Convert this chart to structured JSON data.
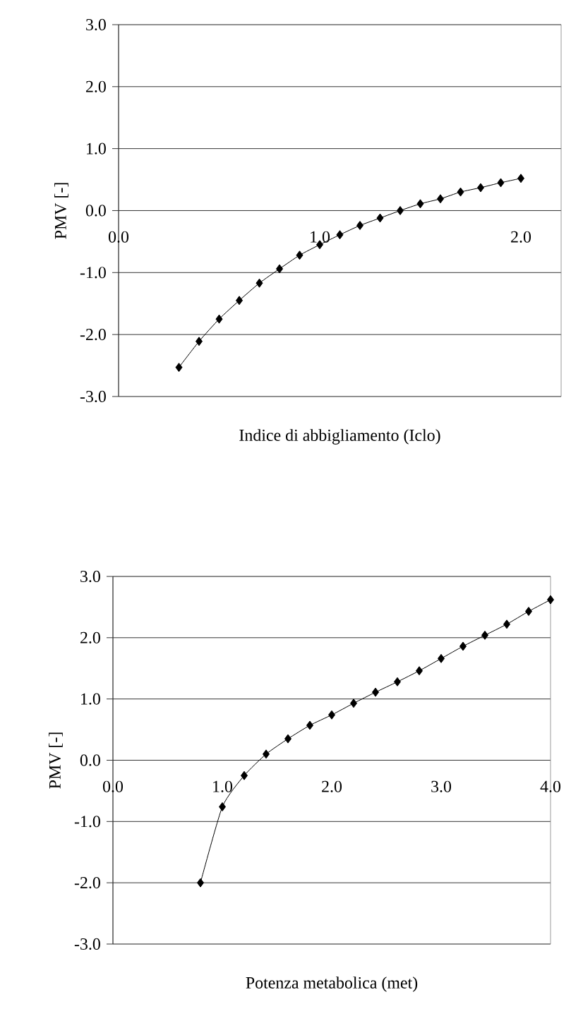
{
  "chart_data": [
    {
      "type": "line",
      "xlabel": "Indice di abbigliamento (Iclo)",
      "ylabel": "PMV [-]",
      "x": [
        0.3,
        0.4,
        0.5,
        0.6,
        0.7,
        0.8,
        0.9,
        1.0,
        1.1,
        1.2,
        1.3,
        1.4,
        1.5,
        1.6,
        1.7,
        1.8,
        1.9,
        2.0
      ],
      "values": [
        -2.53,
        -2.11,
        -1.75,
        -1.45,
        -1.17,
        -0.94,
        -0.72,
        -0.55,
        -0.39,
        -0.24,
        -0.12,
        0.0,
        0.11,
        0.19,
        0.3,
        0.37,
        0.45,
        0.52
      ],
      "color": "#000000",
      "marker": "diamond",
      "line_style": "solid",
      "grid": "y",
      "xlim": [
        0,
        2.2
      ],
      "ylim": [
        -3,
        3
      ],
      "xticks": [
        {
          "value": 0,
          "label": "0.0"
        },
        {
          "value": 1,
          "label": "1.0"
        },
        {
          "value": 2,
          "label": "2.0"
        }
      ],
      "yticks": [
        {
          "value": -3,
          "label": "-3.0"
        },
        {
          "value": -2,
          "label": "-2.0"
        },
        {
          "value": -1,
          "label": "-1.0"
        },
        {
          "value": 0,
          "label": "0.0"
        },
        {
          "value": 1,
          "label": "1.0"
        },
        {
          "value": 2,
          "label": "2.0"
        },
        {
          "value": 3,
          "label": "3.0"
        }
      ]
    },
    {
      "type": "line",
      "xlabel": "Potenza metabolica (met)",
      "ylabel": "PMV [-]",
      "x": [
        0.8,
        1.0,
        1.2,
        1.4,
        1.6,
        1.8,
        2.0,
        2.2,
        2.4,
        2.6,
        2.8,
        3.0,
        3.2,
        3.4,
        3.6,
        3.8,
        4.0
      ],
      "values": [
        -2.0,
        -0.76,
        -0.25,
        0.1,
        0.35,
        0.57,
        0.74,
        0.93,
        1.11,
        1.28,
        1.46,
        1.66,
        1.86,
        2.04,
        2.22,
        2.43,
        2.62
      ],
      "color": "#000000",
      "marker": "diamond",
      "line_style": "solid",
      "grid": "y",
      "xlim": [
        0,
        4
      ],
      "ylim": [
        -3,
        3
      ],
      "xticks": [
        {
          "value": 0,
          "label": "0.0"
        },
        {
          "value": 1,
          "label": "1.0"
        },
        {
          "value": 2,
          "label": "2.0"
        },
        {
          "value": 3,
          "label": "3.0"
        },
        {
          "value": 4,
          "label": "4.0"
        }
      ],
      "yticks": [
        {
          "value": -3,
          "label": "-3.0"
        },
        {
          "value": -2,
          "label": "-2.0"
        },
        {
          "value": -1,
          "label": "-1.0"
        },
        {
          "value": 0,
          "label": "0.0"
        },
        {
          "value": 1,
          "label": "1.0"
        },
        {
          "value": 2,
          "label": "2.0"
        },
        {
          "value": 3,
          "label": "3.0"
        }
      ]
    }
  ]
}
